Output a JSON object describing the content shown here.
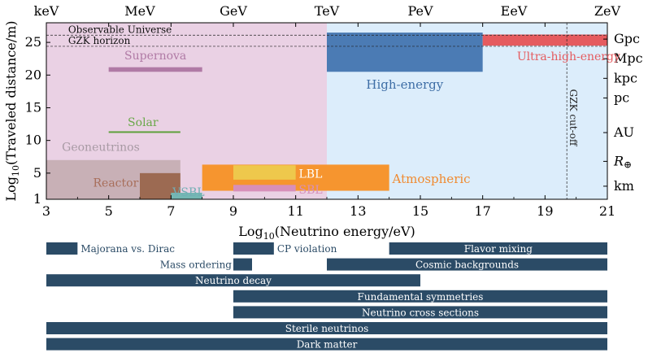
{
  "chart_data": {
    "type": "range",
    "xlabel": "Log10(Neutrino energy/eV)",
    "ylabel": "Log10(Traveled distance/m)",
    "xlim": [
      3,
      21
    ],
    "ylim": [
      1,
      28
    ],
    "x_ticks": [
      "3",
      "5",
      "7",
      "9",
      "11",
      "13",
      "15",
      "17",
      "19",
      "21"
    ],
    "y_ticks": [
      "1",
      "5",
      "10",
      "15",
      "20",
      "25"
    ],
    "energy_units": [
      {
        "label": "keV",
        "x": 3
      },
      {
        "label": "MeV",
        "x": 6
      },
      {
        "label": "GeV",
        "x": 9
      },
      {
        "label": "TeV",
        "x": 12
      },
      {
        "label": "PeV",
        "x": 15
      },
      {
        "label": "EeV",
        "x": 18
      },
      {
        "label": "ZeV",
        "x": 21
      }
    ],
    "distance_units": [
      {
        "label": "Gpc",
        "y": 25.5
      },
      {
        "label": "Mpc",
        "y": 22.5
      },
      {
        "label": "kpc",
        "y": 19.5
      },
      {
        "label": "pc",
        "y": 16.5
      },
      {
        "label": "AU",
        "y": 11.2
      },
      {
        "label": "R⊕",
        "y": 6.8
      },
      {
        "label": "km",
        "y": 3
      }
    ],
    "backgrounds": [
      {
        "name": "low-energy-region",
        "x": [
          3,
          12
        ],
        "y": [
          1,
          28
        ],
        "color": "#ead1e4"
      },
      {
        "name": "high-energy-region",
        "x": [
          12,
          21
        ],
        "y": [
          1,
          28
        ],
        "color": "#dcedfb"
      }
    ],
    "horizons": [
      {
        "label": "Observable Universe",
        "y": 26.1
      },
      {
        "label": "GZK horizon",
        "y": 24.4
      }
    ],
    "cutoff": {
      "label": "GZK cut-off",
      "x": 19.7
    },
    "regions": [
      {
        "label": "Geoneutrinos",
        "x": [
          3,
          7.3
        ],
        "y": [
          1,
          7
        ],
        "color": "#c8b0b6",
        "label_color": "#a89aa4"
      },
      {
        "label": "Reactor",
        "x": [
          6,
          7.3
        ],
        "y": [
          1,
          5
        ],
        "color": "#9c6a52",
        "label_color": "#a86e5a"
      },
      {
        "label": "VSBL",
        "x": [
          7,
          8
        ],
        "y": [
          1,
          2
        ],
        "color": "#74b7b3",
        "label_color": "#72aeb5"
      },
      {
        "label": "Atmospheric",
        "x": [
          8,
          14
        ],
        "y": [
          2.3,
          6.3
        ],
        "color": "#f6952f",
        "label_color": "#f08a30"
      },
      {
        "label": "LBL",
        "x": [
          9,
          11
        ],
        "y": [
          4,
          6.2
        ],
        "color": "#eec84c",
        "label_color": "#ffffff"
      },
      {
        "label": "SBL",
        "x": [
          9,
          11
        ],
        "y": [
          2.2,
          3.2
        ],
        "color": "#d78fba",
        "label_color": "#d78fba"
      },
      {
        "label": "Supernova",
        "x": [
          5,
          8
        ],
        "y": [
          20.5,
          21.2
        ],
        "color": "#b07aa5",
        "label_color": "#b07aa5"
      },
      {
        "label": "Solar",
        "x": [
          5,
          7.3
        ],
        "y": [
          11.2,
          11.4
        ],
        "color": "#5ea13c",
        "label_color": "#6aa84a"
      },
      {
        "label": "High-energy",
        "x": [
          12,
          17
        ],
        "y": [
          20.5,
          26.5
        ],
        "color": "#4b7bb4",
        "label_color": "#3e6ea6"
      },
      {
        "label": "Ultra-high-energy",
        "x": [
          17,
          21
        ],
        "y": [
          24.5,
          26.2
        ],
        "color": "#e55b5f",
        "label_color": "#e55b5f"
      }
    ],
    "physics_bars": [
      {
        "label": "Majorana vs. Dirac",
        "x": [
          3,
          4
        ],
        "row": 0
      },
      {
        "label": "CP violation",
        "x": [
          9,
          10.3
        ],
        "row": 0
      },
      {
        "label": "Flavor mixing",
        "x": [
          14,
          21
        ],
        "row": 0
      },
      {
        "label": "Mass ordering",
        "x": [
          9,
          9.6
        ],
        "row": 1
      },
      {
        "label": "Cosmic backgrounds",
        "x": [
          12,
          21
        ],
        "row": 1
      },
      {
        "label": "Neutrino decay",
        "x": [
          3,
          15
        ],
        "row": 2
      },
      {
        "label": "Fundamental symmetries",
        "x": [
          9,
          21
        ],
        "row": 3
      },
      {
        "label": "Neutrino cross sections",
        "x": [
          9,
          21
        ],
        "row": 4
      },
      {
        "label": "Sterile neutrinos",
        "x": [
          3,
          21
        ],
        "row": 5
      },
      {
        "label": "Dark matter",
        "x": [
          3,
          21
        ],
        "row": 6
      }
    ],
    "bar_color": "#2b4b66"
  }
}
